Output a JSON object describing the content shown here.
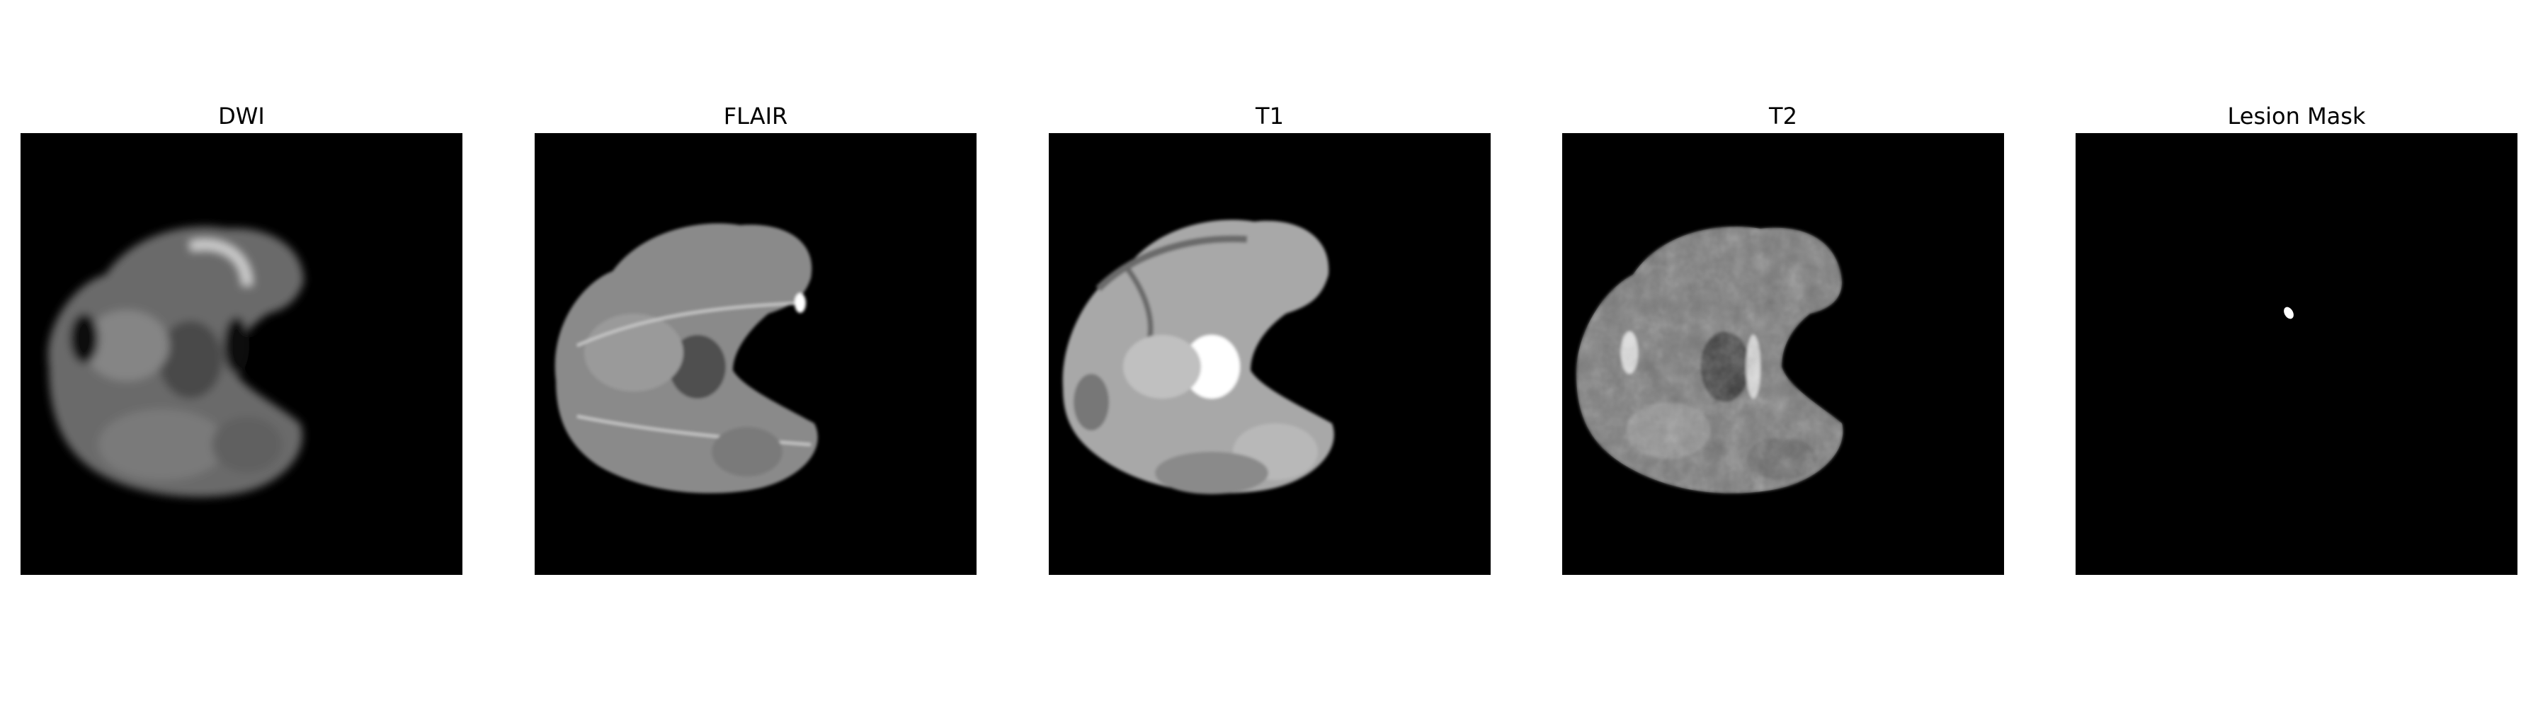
{
  "panels": [
    {
      "title": "DWI",
      "image": "brain-mri-dwi-axial-slice"
    },
    {
      "title": "FLAIR",
      "image": "brain-mri-flair-axial-slice"
    },
    {
      "title": "T1",
      "image": "brain-mri-t1-axial-slice"
    },
    {
      "title": "T2",
      "image": "brain-mri-t2-axial-slice"
    },
    {
      "title": "Lesion Mask",
      "image": "binary-lesion-mask"
    }
  ],
  "colors": {
    "background": "#ffffff",
    "image_background": "#000000",
    "lesion": "#ffffff"
  }
}
